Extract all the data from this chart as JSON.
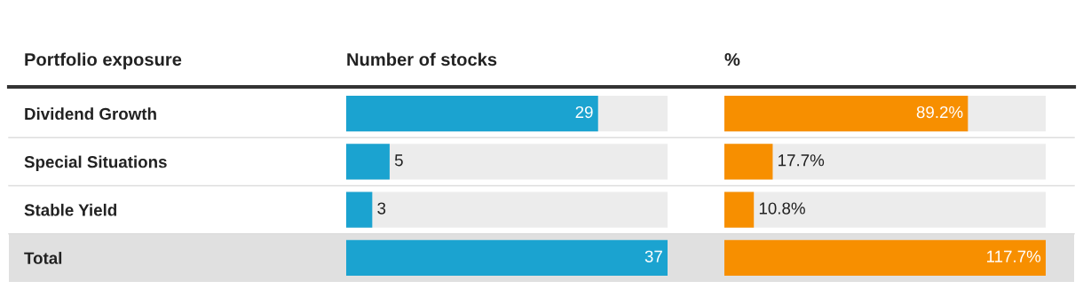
{
  "chart_data": [
    {
      "type": "bar",
      "orientation": "horizontal",
      "title": "Number of stocks",
      "ylabel": "Portfolio exposure",
      "categories": [
        "Dividend Growth",
        "Special Situations",
        "Stable Yield",
        "Total"
      ],
      "values": [
        29,
        5,
        3,
        37
      ],
      "color": "#1ba3d0",
      "xlim": [
        0,
        37
      ],
      "data_labels": true,
      "tick_labels": "y"
    },
    {
      "type": "bar",
      "orientation": "horizontal",
      "title": "%",
      "categories": [
        null,
        null,
        null,
        null
      ],
      "values": [
        89.2,
        17.7,
        10.8,
        117.7
      ],
      "value_labels": [
        "89.2%",
        "17.7%",
        "10.8%",
        "117.7%"
      ],
      "color": "#f78f00",
      "xlim": [
        0,
        117.7
      ],
      "tick_labels": false
    }
  ]
}
